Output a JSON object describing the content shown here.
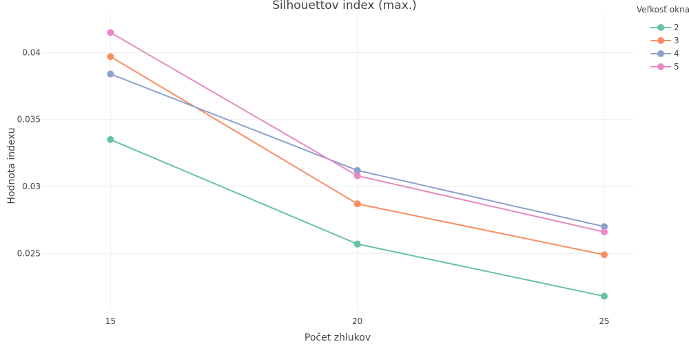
{
  "chart_data": {
    "type": "line",
    "title": "Silhouettov index (max.)",
    "xlabel": "Počet zhlukov",
    "ylabel": "Hodnota indexu",
    "x": [
      15,
      20,
      25
    ],
    "x_tick_labels": [
      "15",
      "20",
      "25"
    ],
    "y_ticks": [
      0.025,
      0.03,
      0.035,
      0.04
    ],
    "y_tick_labels": [
      "0.025",
      "0.03",
      "0.035",
      "0.04"
    ],
    "xlim": [
      13.6,
      25.6
    ],
    "ylim": [
      0.0208,
      0.0429
    ],
    "grid": true,
    "legend": {
      "title": "Veľkosť okna",
      "position": "top-right"
    },
    "series": [
      {
        "name": "2",
        "color": "#66c2a5",
        "values": [
          0.0335,
          0.0257,
          0.0218
        ]
      },
      {
        "name": "3",
        "color": "#fc8d62",
        "values": [
          0.0397,
          0.0287,
          0.0249
        ]
      },
      {
        "name": "4",
        "color": "#8da0cb",
        "values": [
          0.0384,
          0.0312,
          0.027
        ]
      },
      {
        "name": "5",
        "color": "#e78ac3",
        "values": [
          0.0415,
          0.0308,
          0.0266
        ]
      }
    ]
  }
}
